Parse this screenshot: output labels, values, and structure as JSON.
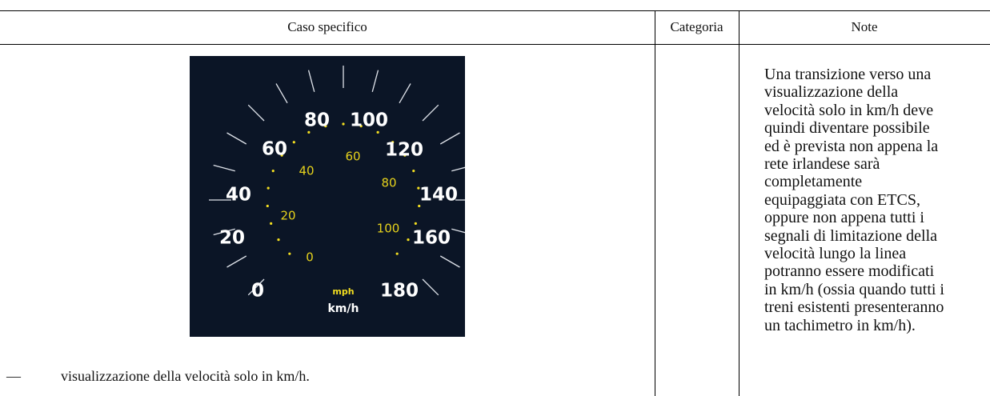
{
  "table": {
    "header": [
      "Caso specifico",
      "Categoria",
      "Note"
    ],
    "row": {
      "gauge": {
        "kmh_labels": [
          "0",
          "20",
          "40",
          "60",
          "80",
          "100",
          "120",
          "140",
          "160",
          "180"
        ],
        "mph_labels": [
          "0",
          "20",
          "40",
          "60",
          "80",
          "100"
        ],
        "mph_unit": "mph",
        "kmh_unit": "km/h"
      },
      "bullet": "—",
      "text": "visualizzazione della velocità solo in km/h.",
      "category": "",
      "note_lines": [
        "Una transizione verso una",
        "visualizzazione della",
        "velocità solo in km/h deve",
        "quindi diventare possibile",
        "ed è prevista non appena la",
        "rete irlandese sarà",
        "completamente",
        "equipaggiata con ETCS,",
        "oppure non appena tutti i",
        "segnali di limitazione della",
        "velocità lungo la linea",
        "potranno essere modificati",
        "in km/h (ossia quando tutti i",
        "treni esistenti presenteranno",
        "un tachimetro in km/h)."
      ]
    }
  }
}
